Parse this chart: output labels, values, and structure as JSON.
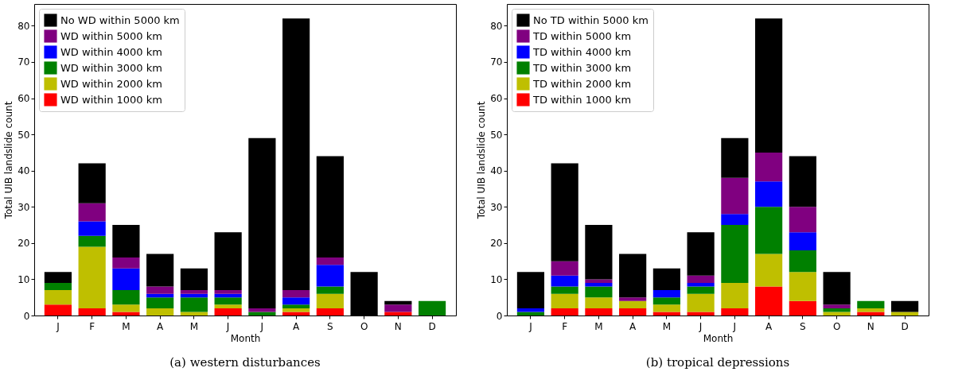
{
  "chart_data": [
    {
      "type": "bar",
      "stacked": true,
      "title": "(a)  western disturbances",
      "xlabel": "Month",
      "ylabel": "Total UIB landslide count",
      "categories": [
        "J",
        "F",
        "M",
        "A",
        "M",
        "J",
        "J",
        "A",
        "S",
        "O",
        "N",
        "D"
      ],
      "ylim": [
        0,
        86
      ],
      "yticks": [
        0,
        10,
        20,
        30,
        40,
        50,
        60,
        70,
        80
      ],
      "grid": false,
      "legend": "top left",
      "series": [
        {
          "name": "WD within 1000 km",
          "color": "#ff0000",
          "values": [
            3,
            2,
            1,
            0,
            0,
            2,
            0,
            1,
            2,
            0,
            1,
            0
          ]
        },
        {
          "name": "WD within 2000 km",
          "color": "#bfbf00",
          "values": [
            4,
            17,
            2,
            2,
            1,
            1,
            0,
            1,
            4,
            0,
            0,
            0
          ]
        },
        {
          "name": "WD within 3000 km",
          "color": "#008000",
          "values": [
            2,
            3,
            4,
            3,
            4,
            2,
            1,
            1,
            2,
            0,
            0,
            4
          ]
        },
        {
          "name": "WD within 4000 km",
          "color": "#0000ff",
          "values": [
            0,
            4,
            6,
            1,
            1,
            1,
            0,
            2,
            6,
            0,
            0,
            0
          ]
        },
        {
          "name": "WD within 5000 km",
          "color": "#800080",
          "values": [
            0,
            5,
            3,
            2,
            1,
            1,
            1,
            2,
            2,
            0,
            2,
            0
          ]
        },
        {
          "name": "No WD within 5000 km",
          "color": "#000000",
          "values": [
            3,
            11,
            9,
            9,
            6,
            16,
            47,
            75,
            28,
            12,
            1,
            0
          ]
        }
      ]
    },
    {
      "type": "bar",
      "stacked": true,
      "title": "(b)  tropical depressions",
      "xlabel": "Month",
      "ylabel": "Total UIB landslide count",
      "categories": [
        "J",
        "F",
        "M",
        "A",
        "M",
        "J",
        "J",
        "A",
        "S",
        "O",
        "N",
        "D"
      ],
      "ylim": [
        0,
        86
      ],
      "yticks": [
        0,
        10,
        20,
        30,
        40,
        50,
        60,
        70,
        80
      ],
      "grid": false,
      "legend": "top left",
      "series": [
        {
          "name": "TD within 1000 km",
          "color": "#ff0000",
          "values": [
            0,
            2,
            2,
            2,
            1,
            1,
            2,
            8,
            4,
            0,
            1,
            0
          ]
        },
        {
          "name": "TD within 2000 km",
          "color": "#bfbf00",
          "values": [
            0,
            4,
            3,
            2,
            2,
            5,
            7,
            9,
            8,
            1,
            1,
            1
          ]
        },
        {
          "name": "TD within 3000 km",
          "color": "#008000",
          "values": [
            1,
            2,
            3,
            0,
            2,
            2,
            16,
            13,
            6,
            1,
            2,
            0
          ]
        },
        {
          "name": "TD within 4000 km",
          "color": "#0000ff",
          "values": [
            1,
            3,
            1,
            0,
            2,
            1,
            3,
            7,
            5,
            0,
            0,
            0
          ]
        },
        {
          "name": "TD within 5000 km",
          "color": "#800080",
          "values": [
            0,
            4,
            1,
            1,
            0,
            2,
            10,
            8,
            7,
            1,
            0,
            0
          ]
        },
        {
          "name": "No TD within 5000 km",
          "color": "#000000",
          "values": [
            10,
            27,
            15,
            12,
            6,
            12,
            11,
            37,
            14,
            9,
            0,
            3
          ]
        }
      ]
    }
  ]
}
